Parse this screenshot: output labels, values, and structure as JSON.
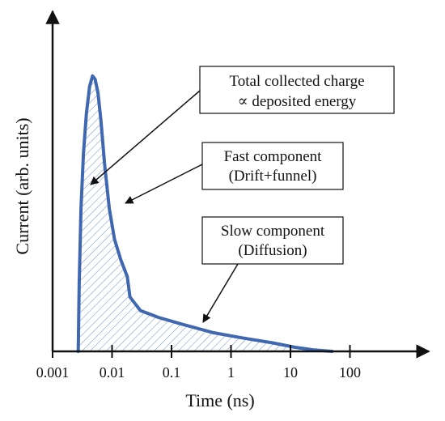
{
  "chart_data": {
    "type": "area",
    "xscale": "log",
    "xlabel": "Time (ns)",
    "ylabel": "Current (arb. units)",
    "xlim": [
      0.001,
      1000
    ],
    "ylim": [
      0,
      1.0
    ],
    "ticks": [
      {
        "value": 0.001,
        "label": "0.001"
      },
      {
        "value": 0.01,
        "label": "0.01"
      },
      {
        "value": 0.1,
        "label": "0.1"
      },
      {
        "value": 1,
        "label": "1"
      },
      {
        "value": 10,
        "label": "10"
      },
      {
        "value": 100,
        "label": "100"
      }
    ],
    "grid": false,
    "series": [
      {
        "color": "#3f68b0",
        "fill": "hatched",
        "x": [
          0.0027,
          0.0028,
          0.003,
          0.0033,
          0.0037,
          0.0042,
          0.0047,
          0.0052,
          0.0058,
          0.0065,
          0.0075,
          0.009,
          0.011,
          0.014,
          0.018,
          0.02,
          0.03,
          0.06,
          0.15,
          0.5,
          1.5,
          5,
          12,
          25,
          50
        ],
        "y": [
          0.0,
          0.2,
          0.42,
          0.58,
          0.7,
          0.78,
          0.81,
          0.8,
          0.76,
          0.68,
          0.55,
          0.42,
          0.33,
          0.27,
          0.22,
          0.16,
          0.12,
          0.1,
          0.08,
          0.055,
          0.04,
          0.025,
          0.012,
          0.004,
          0.0
        ]
      }
    ],
    "annotations": [
      {
        "lines": [
          "Total collected charge",
          "∝ deposited energy"
        ],
        "points_to": {
          "x": 0.006,
          "y": 0.5
        }
      },
      {
        "lines": [
          "Fast component",
          "(Drift+funnel)"
        ],
        "points_to": {
          "x": 0.015,
          "y": 0.45
        }
      },
      {
        "lines": [
          "Slow component",
          "(Diffusion)"
        ],
        "points_to": {
          "x": 1.5,
          "y": 0.1
        }
      }
    ]
  }
}
